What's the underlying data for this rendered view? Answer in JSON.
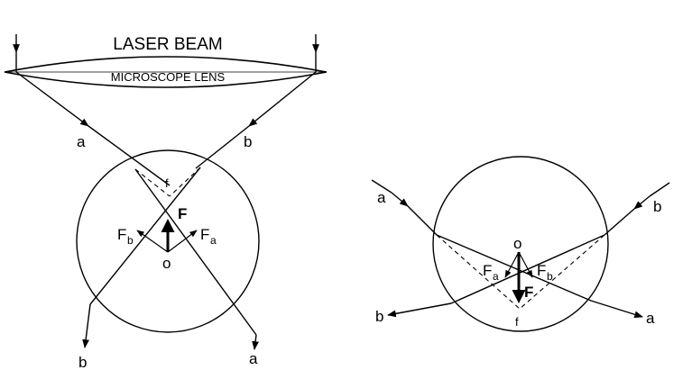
{
  "left_diagram": {
    "title": "LASER BEAM",
    "lens_label": "MICROSCOPE LENS",
    "ray_a": "a",
    "ray_b": "b",
    "focus": "f",
    "center": "o",
    "force": "F",
    "force_b": "F",
    "force_b_sub": "b",
    "force_a": "F",
    "force_a_sub": "a",
    "exit_b": "b",
    "exit_a": "a"
  },
  "right_diagram": {
    "ray_a": "a",
    "ray_b": "b",
    "center": "o",
    "focus": "f",
    "force": "F",
    "force_a": "F",
    "force_a_sub": "a",
    "force_b": "F",
    "force_b_sub": "b",
    "exit_b": "b",
    "exit_a": "a"
  }
}
